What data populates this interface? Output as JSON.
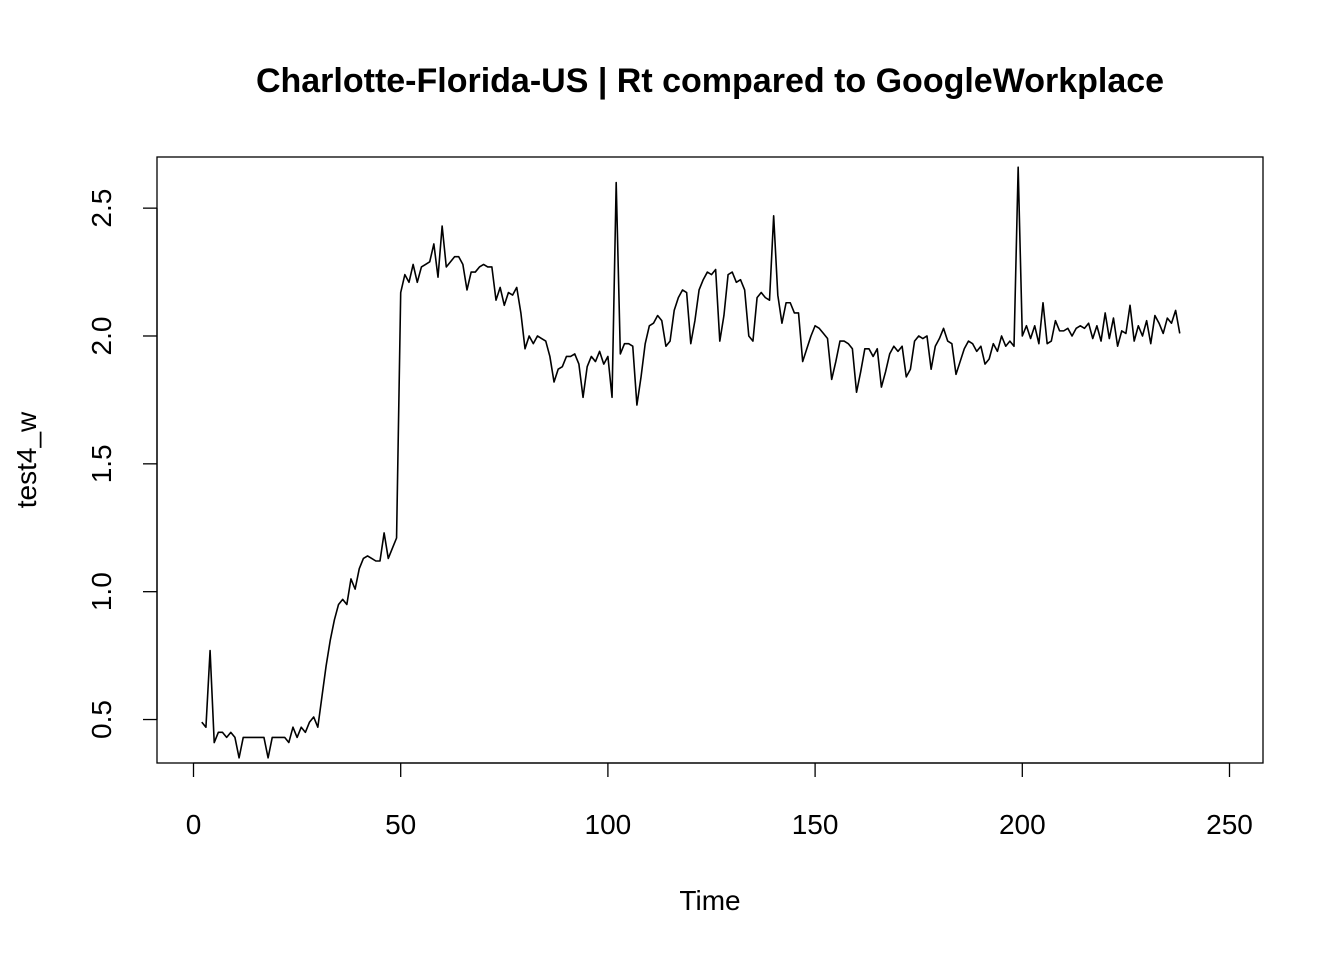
{
  "chart_data": {
    "type": "line",
    "title": "Charlotte-Florida-US | Rt compared to GoogleWorkplace",
    "xlabel": "Time",
    "ylabel": "test4_w",
    "xlim": [
      0,
      250
    ],
    "ylim": [
      0.33,
      2.7
    ],
    "x_ticks": [
      0,
      50,
      100,
      150,
      200,
      250
    ],
    "y_ticks": [
      0.5,
      1.0,
      1.5,
      2.0,
      2.5
    ],
    "x_tick_labels": [
      "0",
      "50",
      "100",
      "150",
      "200",
      "250"
    ],
    "y_tick_labels": [
      "0.5",
      "1.0",
      "1.5",
      "2.0",
      "2.5"
    ],
    "grid": false,
    "line_color": "#000000",
    "series": [
      {
        "x_start": 2,
        "x_step": 1,
        "values": [
          0.49,
          0.47,
          0.77,
          0.41,
          0.45,
          0.45,
          0.43,
          0.45,
          0.43,
          0.35,
          0.43,
          0.43,
          0.43,
          0.43,
          0.43,
          0.43,
          0.35,
          0.43,
          0.43,
          0.43,
          0.43,
          0.41,
          0.47,
          0.43,
          0.47,
          0.45,
          0.49,
          0.51,
          0.47,
          0.59,
          0.71,
          0.81,
          0.89,
          0.95,
          0.97,
          0.95,
          1.05,
          1.01,
          1.09,
          1.13,
          1.14,
          1.13,
          1.12,
          1.12,
          1.23,
          1.13,
          1.17,
          1.21,
          2.17,
          2.24,
          2.21,
          2.28,
          2.21,
          2.27,
          2.28,
          2.29,
          2.36,
          2.23,
          2.43,
          2.27,
          2.29,
          2.31,
          2.31,
          2.28,
          2.18,
          2.25,
          2.25,
          2.27,
          2.28,
          2.27,
          2.27,
          2.14,
          2.19,
          2.12,
          2.17,
          2.16,
          2.19,
          2.09,
          1.95,
          2.0,
          1.97,
          2.0,
          1.99,
          1.98,
          1.92,
          1.82,
          1.87,
          1.88,
          1.92,
          1.92,
          1.93,
          1.89,
          1.76,
          1.88,
          1.92,
          1.9,
          1.94,
          1.89,
          1.92,
          1.76,
          2.6,
          1.93,
          1.97,
          1.97,
          1.96,
          1.73,
          1.84,
          1.97,
          2.04,
          2.05,
          2.08,
          2.06,
          1.96,
          1.98,
          2.1,
          2.15,
          2.18,
          2.17,
          1.97,
          2.06,
          2.18,
          2.22,
          2.25,
          2.24,
          2.26,
          1.98,
          2.08,
          2.24,
          2.25,
          2.21,
          2.22,
          2.18,
          2.0,
          1.98,
          2.15,
          2.17,
          2.15,
          2.14,
          2.47,
          2.16,
          2.05,
          2.13,
          2.13,
          2.09,
          2.09,
          1.9,
          1.95,
          2.0,
          2.04,
          2.03,
          2.01,
          1.99,
          1.83,
          1.9,
          1.98,
          1.98,
          1.97,
          1.95,
          1.78,
          1.86,
          1.95,
          1.95,
          1.92,
          1.95,
          1.8,
          1.86,
          1.93,
          1.96,
          1.94,
          1.96,
          1.84,
          1.87,
          1.98,
          2.0,
          1.99,
          2.0,
          1.87,
          1.96,
          1.99,
          2.03,
          1.98,
          1.97,
          1.85,
          1.9,
          1.95,
          1.98,
          1.97,
          1.94,
          1.96,
          1.89,
          1.91,
          1.97,
          1.94,
          2.0,
          1.96,
          1.98,
          1.96,
          2.66,
          2.0,
          2.04,
          1.99,
          2.04,
          1.97,
          2.13,
          1.97,
          1.98,
          2.06,
          2.02,
          2.02,
          2.03,
          2.0,
          2.03,
          2.04,
          2.03,
          2.05,
          1.99,
          2.04,
          1.98,
          2.09,
          1.99,
          2.07,
          1.96,
          2.02,
          2.01,
          2.12,
          1.98,
          2.04,
          2.0,
          2.06,
          1.97,
          2.08,
          2.05,
          2.01,
          2.07,
          2.05,
          2.1,
          2.01
        ]
      }
    ]
  }
}
